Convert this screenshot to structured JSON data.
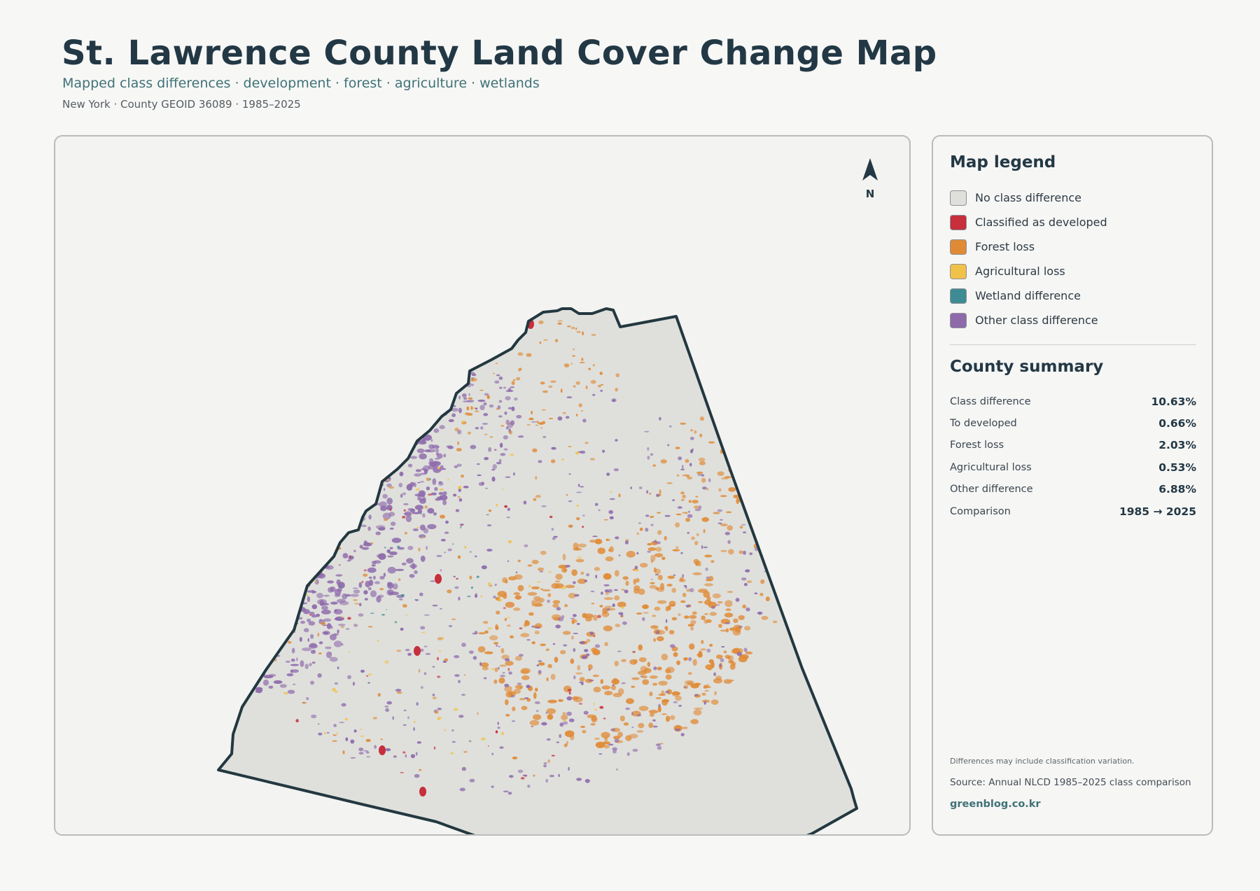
{
  "header": {
    "title": "St. Lawrence County Land Cover Change Map",
    "subtitle": "Mapped class differences · development · forest · agriculture · wetlands",
    "meta": "New York · County GEOID 36089 · 1985–2025"
  },
  "map": {
    "north_label": "N",
    "colors": {
      "no_change": "#dfe0dc",
      "developed": "#c62f3b",
      "forest_loss": "#e08a36",
      "agricultural_loss": "#f0c24a",
      "wetland": "#3f8b94",
      "other": "#8e6aab",
      "outline": "#233840"
    }
  },
  "legend": {
    "title": "Map legend",
    "items": [
      {
        "label": "No class difference",
        "color": "#dfe0dc"
      },
      {
        "label": "Classified as developed",
        "color": "#c62f3b"
      },
      {
        "label": "Forest loss",
        "color": "#e08a36"
      },
      {
        "label": "Agricultural loss",
        "color": "#f0c24a"
      },
      {
        "label": "Wetland difference",
        "color": "#3f8b94"
      },
      {
        "label": "Other class difference",
        "color": "#8e6aab"
      }
    ]
  },
  "summary": {
    "title": "County summary",
    "rows": [
      {
        "label": "Class difference",
        "value": "10.63%"
      },
      {
        "label": "To developed",
        "value": "0.66%"
      },
      {
        "label": "Forest loss",
        "value": "2.03%"
      },
      {
        "label": "Agricultural loss",
        "value": "0.53%"
      },
      {
        "label": "Other difference",
        "value": "6.88%"
      },
      {
        "label": "Comparison",
        "value": "1985 → 2025"
      }
    ]
  },
  "footer": {
    "note": "Differences may include classification variation.",
    "source": "Source: Annual NLCD 1985–2025 class comparison",
    "site": "greenblog.co.kr"
  }
}
